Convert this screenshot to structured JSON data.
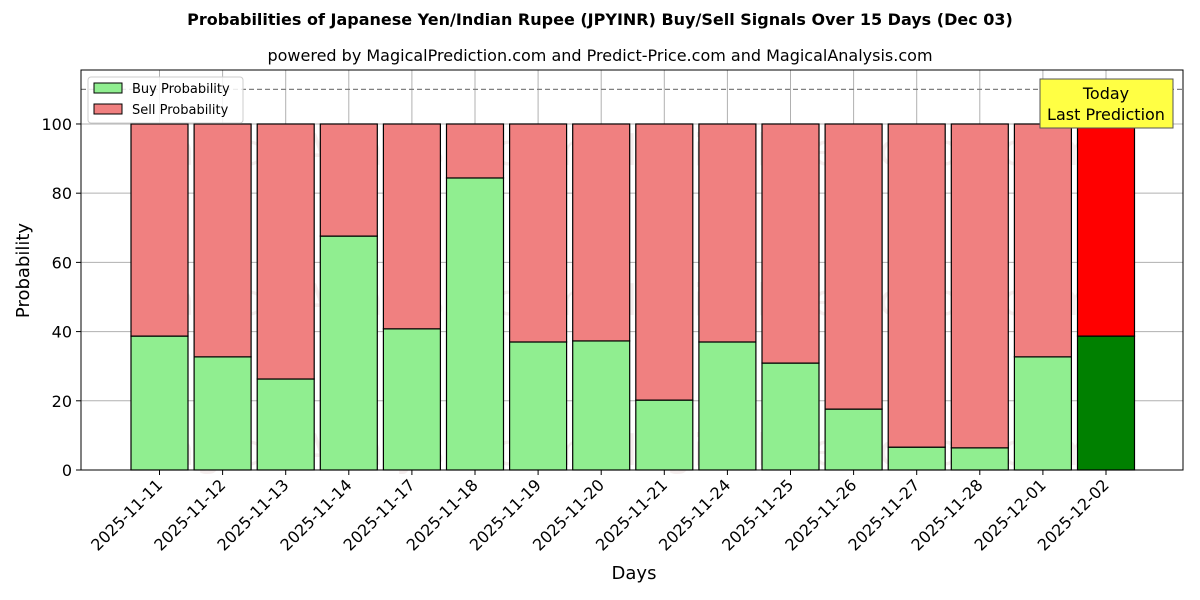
{
  "chart_data": {
    "type": "bar",
    "stacked": true,
    "title": "Probabilities of Japanese Yen/Indian Rupee (JPYINR) Buy/Sell Signals Over 15 Days (Dec 03)",
    "subtitle": "powered by MagicalPrediction.com and Predict-Price.com and MagicalAnalysis.com",
    "xlabel": "Days",
    "ylabel": "Probability",
    "ylim": [
      0,
      115.6
    ],
    "yticks": [
      0,
      20,
      40,
      60,
      80,
      100
    ],
    "grid": true,
    "legend_position": "upper left",
    "reference_line": {
      "y": 110,
      "style": "dashed",
      "color": "#808080"
    },
    "categories": [
      "2025-11-11",
      "2025-11-12",
      "2025-11-13",
      "2025-11-14",
      "2025-11-17",
      "2025-11-18",
      "2025-11-19",
      "2025-11-20",
      "2025-11-21",
      "2025-11-24",
      "2025-11-25",
      "2025-11-26",
      "2025-11-27",
      "2025-11-28",
      "2025-12-01",
      "2025-12-02"
    ],
    "series": [
      {
        "name": "Buy Probability",
        "color": "#90ee90",
        "values": [
          38.7,
          32.7,
          26.3,
          67.6,
          40.8,
          84.4,
          37.0,
          37.3,
          20.2,
          37.0,
          30.9,
          17.6,
          6.6,
          6.4,
          32.7,
          38.7
        ]
      },
      {
        "name": "Sell Probability",
        "color": "#f08080",
        "values": [
          61.3,
          67.3,
          73.7,
          32.4,
          59.2,
          15.6,
          63.0,
          62.7,
          79.8,
          63.0,
          69.1,
          82.4,
          93.4,
          93.6,
          67.3,
          61.3
        ]
      }
    ],
    "highlight": {
      "index": 15,
      "buy_color": "#008000",
      "sell_color": "#ff0000"
    },
    "annotation": {
      "text_line1": "Today",
      "text_line2": "Last Prediction",
      "background": "#ffff44"
    },
    "watermarks": [
      "MagicalAnalysis.com",
      "MagicalPrediction.com"
    ]
  }
}
